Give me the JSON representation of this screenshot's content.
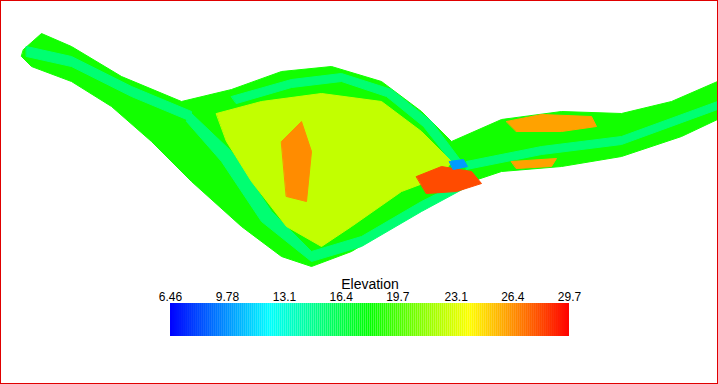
{
  "chart_data": {
    "type": "map",
    "colorbar": {
      "label": "Elevation",
      "range": [
        6.46,
        29.7
      ],
      "ticks": [
        6.46,
        9.78,
        13.1,
        16.4,
        19.7,
        23.1,
        26.4,
        29.7
      ],
      "colors": [
        "#0000ff",
        "#00ffff",
        "#00ff00",
        "#ffff00",
        "#ff0000"
      ]
    },
    "regions": [
      {
        "elevation": 18.5,
        "polygon": [
          [
            22,
            48
          ],
          [
            40,
            32
          ],
          [
            70,
            45
          ],
          [
            120,
            75
          ],
          [
            180,
            100
          ],
          [
            230,
            88
          ],
          [
            280,
            70
          ],
          [
            330,
            65
          ],
          [
            380,
            80
          ],
          [
            420,
            110
          ],
          [
            450,
            140
          ],
          [
            500,
            118
          ],
          [
            560,
            110
          ],
          [
            620,
            112
          ],
          [
            670,
            100
          ],
          [
            716,
            80
          ],
          [
            716,
            118
          ],
          [
            680,
            135
          ],
          [
            620,
            155
          ],
          [
            560,
            165
          ],
          [
            500,
            170
          ],
          [
            470,
            180
          ],
          [
            440,
            190
          ],
          [
            400,
            220
          ],
          [
            350,
            250
          ],
          [
            310,
            265
          ],
          [
            280,
            255
          ],
          [
            240,
            225
          ],
          [
            190,
            180
          ],
          [
            150,
            140
          ],
          [
            110,
            105
          ],
          [
            70,
            80
          ],
          [
            30,
            65
          ],
          [
            20,
            55
          ]
        ]
      },
      {
        "elevation": 15.5,
        "polygon": [
          [
            25,
            45
          ],
          [
            70,
            55
          ],
          [
            130,
            85
          ],
          [
            190,
            110
          ],
          [
            190,
            120
          ],
          [
            130,
            95
          ],
          [
            70,
            65
          ],
          [
            25,
            55
          ]
        ]
      },
      {
        "elevation": 15.5,
        "polygon": [
          [
            190,
            112
          ],
          [
            230,
            150
          ],
          [
            270,
            210
          ],
          [
            310,
            250
          ],
          [
            360,
            235
          ],
          [
            420,
            200
          ],
          [
            470,
            175
          ],
          [
            470,
            183
          ],
          [
            420,
            210
          ],
          [
            360,
            245
          ],
          [
            310,
            260
          ],
          [
            260,
            220
          ],
          [
            220,
            160
          ],
          [
            185,
            120
          ]
        ]
      },
      {
        "elevation": 15.5,
        "polygon": [
          [
            230,
            95
          ],
          [
            290,
            78
          ],
          [
            340,
            72
          ],
          [
            390,
            88
          ],
          [
            430,
            120
          ],
          [
            460,
            160
          ],
          [
            452,
            163
          ],
          [
            422,
            125
          ],
          [
            385,
            95
          ],
          [
            340,
            80
          ],
          [
            290,
            86
          ],
          [
            235,
            102
          ]
        ]
      },
      {
        "elevation": 15.5,
        "polygon": [
          [
            465,
            160
          ],
          [
            540,
            145
          ],
          [
            620,
            135
          ],
          [
            716,
            100
          ],
          [
            716,
            108
          ],
          [
            620,
            143
          ],
          [
            540,
            153
          ],
          [
            465,
            168
          ]
        ]
      },
      {
        "elevation": 22.5,
        "polygon": [
          [
            215,
            112
          ],
          [
            260,
            100
          ],
          [
            320,
            92
          ],
          [
            380,
            100
          ],
          [
            420,
            130
          ],
          [
            450,
            160
          ],
          [
            440,
            175
          ],
          [
            400,
            190
          ],
          [
            350,
            225
          ],
          [
            320,
            245
          ],
          [
            285,
            225
          ],
          [
            250,
            180
          ],
          [
            225,
            140
          ]
        ]
      },
      {
        "elevation": 26.5,
        "polygon": [
          [
            280,
            140
          ],
          [
            300,
            120
          ],
          [
            310,
            150
          ],
          [
            305,
            200
          ],
          [
            285,
            195
          ]
        ]
      },
      {
        "elevation": 28,
        "polygon": [
          [
            415,
            175
          ],
          [
            440,
            165
          ],
          [
            470,
            170
          ],
          [
            480,
            182
          ],
          [
            455,
            190
          ],
          [
            425,
            192
          ]
        ]
      },
      {
        "elevation": 10,
        "polygon": [
          [
            448,
            160
          ],
          [
            462,
            158
          ],
          [
            466,
            165
          ],
          [
            452,
            168
          ]
        ]
      },
      {
        "elevation": 26,
        "polygon": [
          [
            505,
            120
          ],
          [
            540,
            113
          ],
          [
            590,
            115
          ],
          [
            595,
            125
          ],
          [
            560,
            130
          ],
          [
            515,
            130
          ]
        ]
      },
      {
        "elevation": 26,
        "polygon": [
          [
            510,
            160
          ],
          [
            555,
            157
          ],
          [
            550,
            165
          ],
          [
            515,
            167
          ]
        ]
      }
    ]
  }
}
